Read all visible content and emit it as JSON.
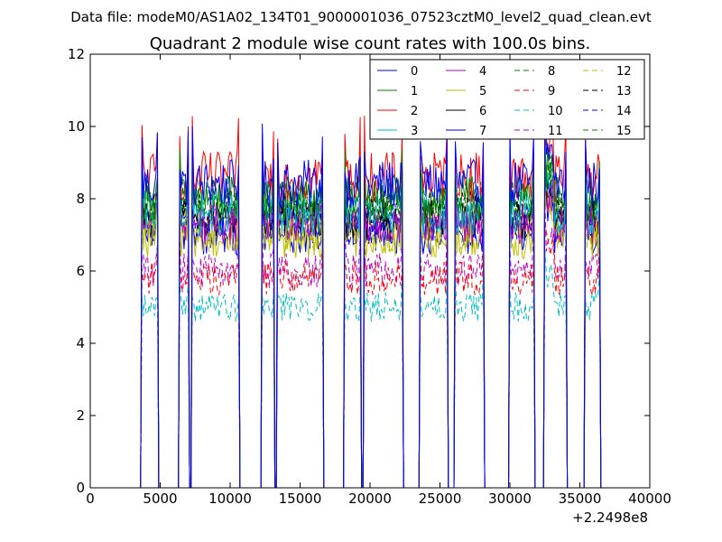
{
  "suptitle": "Data file: modeM0/AS1A02_134T01_9000001036_07523cztM0_level2_quad_clean.evt",
  "title": "Quadrant 2 module wise count rates with 100.0s bins.",
  "x_offset_label": "+2.2498e8",
  "chart_data": {
    "type": "line",
    "title": "Quadrant 2 module wise count rates with 100.0s bins.",
    "xlabel": "",
    "ylabel": "",
    "x_offset": 224980000,
    "xlim": [
      0,
      40000
    ],
    "ylim": [
      0,
      12
    ],
    "x_ticks": [
      0,
      5000,
      10000,
      15000,
      20000,
      25000,
      30000,
      35000,
      40000
    ],
    "y_ticks": [
      0,
      2,
      4,
      6,
      8,
      10,
      12
    ],
    "grid": false,
    "legend_position": "top-right",
    "legend_columns": 4,
    "bin_size_s": 100,
    "segments": [
      {
        "start": 3700,
        "end": 4800
      },
      {
        "start": 6400,
        "end": 7000
      },
      {
        "start": 7300,
        "end": 10600
      },
      {
        "start": 12300,
        "end": 13100
      },
      {
        "start": 13400,
        "end": 16600
      },
      {
        "start": 18200,
        "end": 19300
      },
      {
        "start": 19600,
        "end": 22300
      },
      {
        "start": 23600,
        "end": 25500
      },
      {
        "start": 26100,
        "end": 28100
      },
      {
        "start": 30000,
        "end": 31700
      },
      {
        "start": 32500,
        "end": 34000
      },
      {
        "start": 35400,
        "end": 36400
      }
    ],
    "series": [
      {
        "name": "0",
        "color": "#0000ff",
        "dash": "solid",
        "level": 8.4
      },
      {
        "name": "1",
        "color": "#008000",
        "dash": "solid",
        "level": 8.0
      },
      {
        "name": "2",
        "color": "#ff0000",
        "dash": "solid",
        "level": 8.6
      },
      {
        "name": "3",
        "color": "#00bfbf",
        "dash": "solid",
        "level": 7.6
      },
      {
        "name": "4",
        "color": "#bf00bf",
        "dash": "solid",
        "level": 7.3
      },
      {
        "name": "5",
        "color": "#bfbf00",
        "dash": "solid",
        "level": 6.9
      },
      {
        "name": "6",
        "color": "#000000",
        "dash": "solid",
        "level": 7.4
      },
      {
        "name": "7",
        "color": "#0000ff",
        "dash": "solid",
        "level": 7.0
      },
      {
        "name": "8",
        "color": "#008000",
        "dash": "dashed",
        "level": 7.9
      },
      {
        "name": "9",
        "color": "#ff0000",
        "dash": "dashed",
        "level": 5.8
      },
      {
        "name": "10",
        "color": "#00bfbf",
        "dash": "dashed",
        "level": 5.0
      },
      {
        "name": "11",
        "color": "#bf00bf",
        "dash": "dashed",
        "level": 6.0
      },
      {
        "name": "12",
        "color": "#bfbf00",
        "dash": "dashed",
        "level": 7.1
      },
      {
        "name": "13",
        "color": "#000000",
        "dash": "dashed",
        "level": 7.6
      },
      {
        "name": "14",
        "color": "#0000ff",
        "dash": "dashed",
        "level": 7.3
      },
      {
        "name": "15",
        "color": "#008000",
        "dash": "dashed",
        "level": 7.7
      }
    ]
  }
}
